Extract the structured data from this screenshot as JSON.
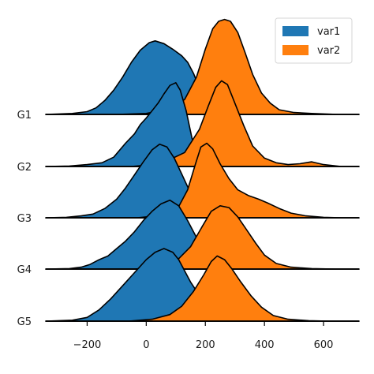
{
  "chart_data": {
    "type": "area",
    "subtype": "ridgeline (joy plot)",
    "title": "",
    "xlabel": "",
    "ylabel": "",
    "xlim": [
      -340,
      720
    ],
    "x_ticks": [
      -200,
      0,
      200,
      400,
      600
    ],
    "x_tick_labels": [
      "−200",
      "0",
      "200",
      "400",
      "600"
    ],
    "groups": [
      "G1",
      "G2",
      "G3",
      "G4",
      "G5"
    ],
    "legend": {
      "location": "top-right",
      "entries": [
        "var1",
        "var2"
      ]
    },
    "colors": {
      "var1": "#1f77b4",
      "var2": "#ff7f0e",
      "outline": "#000000"
    },
    "series": [
      {
        "name": "var1",
        "color": "#1f77b4"
      },
      {
        "name": "var2",
        "color": "#ff7f0e"
      }
    ],
    "ridges": [
      {
        "group": "G1",
        "var1": [
          [
            -340,
            0
          ],
          [
            -250,
            0.01
          ],
          [
            -200,
            0.03
          ],
          [
            -170,
            0.07
          ],
          [
            -140,
            0.15
          ],
          [
            -110,
            0.26
          ],
          [
            -80,
            0.4
          ],
          [
            -50,
            0.56
          ],
          [
            -20,
            0.69
          ],
          [
            10,
            0.77
          ],
          [
            30,
            0.79
          ],
          [
            60,
            0.76
          ],
          [
            90,
            0.7
          ],
          [
            120,
            0.63
          ],
          [
            140,
            0.56
          ],
          [
            160,
            0.44
          ],
          [
            180,
            0.28
          ],
          [
            210,
            0.12
          ],
          [
            250,
            0.03
          ],
          [
            300,
            0.01
          ],
          [
            400,
            0
          ]
        ],
        "var2": [
          [
            -100,
            0
          ],
          [
            0,
            0.01
          ],
          [
            80,
            0.06
          ],
          [
            130,
            0.16
          ],
          [
            170,
            0.4
          ],
          [
            200,
            0.7
          ],
          [
            225,
            0.92
          ],
          [
            245,
            1.0
          ],
          [
            265,
            1.02
          ],
          [
            285,
            1.0
          ],
          [
            310,
            0.88
          ],
          [
            335,
            0.66
          ],
          [
            360,
            0.43
          ],
          [
            390,
            0.23
          ],
          [
            420,
            0.12
          ],
          [
            450,
            0.05
          ],
          [
            500,
            0.02
          ],
          [
            560,
            0.01
          ],
          [
            650,
            0
          ]
        ]
      },
      {
        "group": "G2",
        "var1": [
          [
            -340,
            0
          ],
          [
            -260,
            0.005
          ],
          [
            -200,
            0.02
          ],
          [
            -150,
            0.04
          ],
          [
            -110,
            0.1
          ],
          [
            -70,
            0.25
          ],
          [
            -40,
            0.35
          ],
          [
            -20,
            0.45
          ],
          [
            0,
            0.52
          ],
          [
            20,
            0.6
          ],
          [
            40,
            0.68
          ],
          [
            60,
            0.78
          ],
          [
            80,
            0.87
          ],
          [
            100,
            0.9
          ],
          [
            115,
            0.82
          ],
          [
            135,
            0.6
          ],
          [
            155,
            0.3
          ],
          [
            180,
            0.12
          ],
          [
            220,
            0.04
          ],
          [
            300,
            0.01
          ],
          [
            400,
            0
          ]
        ],
        "var2": [
          [
            -50,
            0
          ],
          [
            50,
            0.03
          ],
          [
            130,
            0.15
          ],
          [
            180,
            0.4
          ],
          [
            210,
            0.65
          ],
          [
            235,
            0.85
          ],
          [
            255,
            0.92
          ],
          [
            275,
            0.88
          ],
          [
            300,
            0.68
          ],
          [
            330,
            0.44
          ],
          [
            360,
            0.22
          ],
          [
            400,
            0.09
          ],
          [
            440,
            0.04
          ],
          [
            480,
            0.02
          ],
          [
            520,
            0.03
          ],
          [
            560,
            0.05
          ],
          [
            600,
            0.02
          ],
          [
            660,
            0
          ],
          [
            720,
            0
          ]
        ]
      },
      {
        "group": "G3",
        "var1": [
          [
            -340,
            0
          ],
          [
            -270,
            0.005
          ],
          [
            -220,
            0.02
          ],
          [
            -180,
            0.04
          ],
          [
            -140,
            0.1
          ],
          [
            -100,
            0.2
          ],
          [
            -70,
            0.32
          ],
          [
            -40,
            0.46
          ],
          [
            -10,
            0.6
          ],
          [
            20,
            0.73
          ],
          [
            45,
            0.79
          ],
          [
            70,
            0.76
          ],
          [
            95,
            0.64
          ],
          [
            120,
            0.47
          ],
          [
            145,
            0.3
          ],
          [
            175,
            0.15
          ],
          [
            210,
            0.07
          ],
          [
            260,
            0.02
          ],
          [
            330,
            0.005
          ],
          [
            420,
            0
          ]
        ],
        "var2": [
          [
            -30,
            0
          ],
          [
            60,
            0.03
          ],
          [
            110,
            0.12
          ],
          [
            140,
            0.3
          ],
          [
            165,
            0.56
          ],
          [
            185,
            0.76
          ],
          [
            205,
            0.8
          ],
          [
            225,
            0.74
          ],
          [
            250,
            0.58
          ],
          [
            280,
            0.42
          ],
          [
            310,
            0.3
          ],
          [
            345,
            0.24
          ],
          [
            380,
            0.2
          ],
          [
            410,
            0.16
          ],
          [
            450,
            0.1
          ],
          [
            490,
            0.05
          ],
          [
            540,
            0.02
          ],
          [
            600,
            0.005
          ],
          [
            660,
            0
          ]
        ]
      },
      {
        "group": "G4",
        "var1": [
          [
            -340,
            0
          ],
          [
            -260,
            0.005
          ],
          [
            -220,
            0.02
          ],
          [
            -190,
            0.05
          ],
          [
            -160,
            0.1
          ],
          [
            -130,
            0.14
          ],
          [
            -100,
            0.22
          ],
          [
            -70,
            0.3
          ],
          [
            -40,
            0.4
          ],
          [
            -10,
            0.52
          ],
          [
            20,
            0.62
          ],
          [
            50,
            0.7
          ],
          [
            80,
            0.74
          ],
          [
            110,
            0.68
          ],
          [
            140,
            0.52
          ],
          [
            170,
            0.34
          ],
          [
            200,
            0.18
          ],
          [
            240,
            0.06
          ],
          [
            290,
            0.01
          ],
          [
            360,
            0
          ]
        ],
        "var2": [
          [
            -40,
            0
          ],
          [
            40,
            0.02
          ],
          [
            100,
            0.08
          ],
          [
            150,
            0.24
          ],
          [
            190,
            0.46
          ],
          [
            220,
            0.62
          ],
          [
            250,
            0.68
          ],
          [
            280,
            0.66
          ],
          [
            310,
            0.56
          ],
          [
            340,
            0.42
          ],
          [
            370,
            0.28
          ],
          [
            400,
            0.15
          ],
          [
            440,
            0.06
          ],
          [
            490,
            0.02
          ],
          [
            560,
            0.005
          ],
          [
            640,
            0
          ]
        ]
      },
      {
        "group": "G5",
        "var1": [
          [
            -340,
            0
          ],
          [
            -250,
            0.01
          ],
          [
            -200,
            0.04
          ],
          [
            -160,
            0.12
          ],
          [
            -120,
            0.24
          ],
          [
            -80,
            0.38
          ],
          [
            -40,
            0.52
          ],
          [
            0,
            0.66
          ],
          [
            30,
            0.74
          ],
          [
            60,
            0.78
          ],
          [
            90,
            0.74
          ],
          [
            110,
            0.66
          ],
          [
            130,
            0.54
          ],
          [
            150,
            0.42
          ],
          [
            175,
            0.3
          ],
          [
            200,
            0.18
          ],
          [
            240,
            0.08
          ],
          [
            290,
            0.02
          ],
          [
            360,
            0
          ]
        ],
        "var2": [
          [
            -60,
            0
          ],
          [
            20,
            0.02
          ],
          [
            80,
            0.07
          ],
          [
            120,
            0.16
          ],
          [
            160,
            0.32
          ],
          [
            195,
            0.5
          ],
          [
            220,
            0.64
          ],
          [
            240,
            0.7
          ],
          [
            265,
            0.66
          ],
          [
            290,
            0.56
          ],
          [
            320,
            0.42
          ],
          [
            355,
            0.27
          ],
          [
            390,
            0.15
          ],
          [
            430,
            0.06
          ],
          [
            480,
            0.02
          ],
          [
            550,
            0.005
          ],
          [
            620,
            0
          ]
        ]
      }
    ]
  }
}
